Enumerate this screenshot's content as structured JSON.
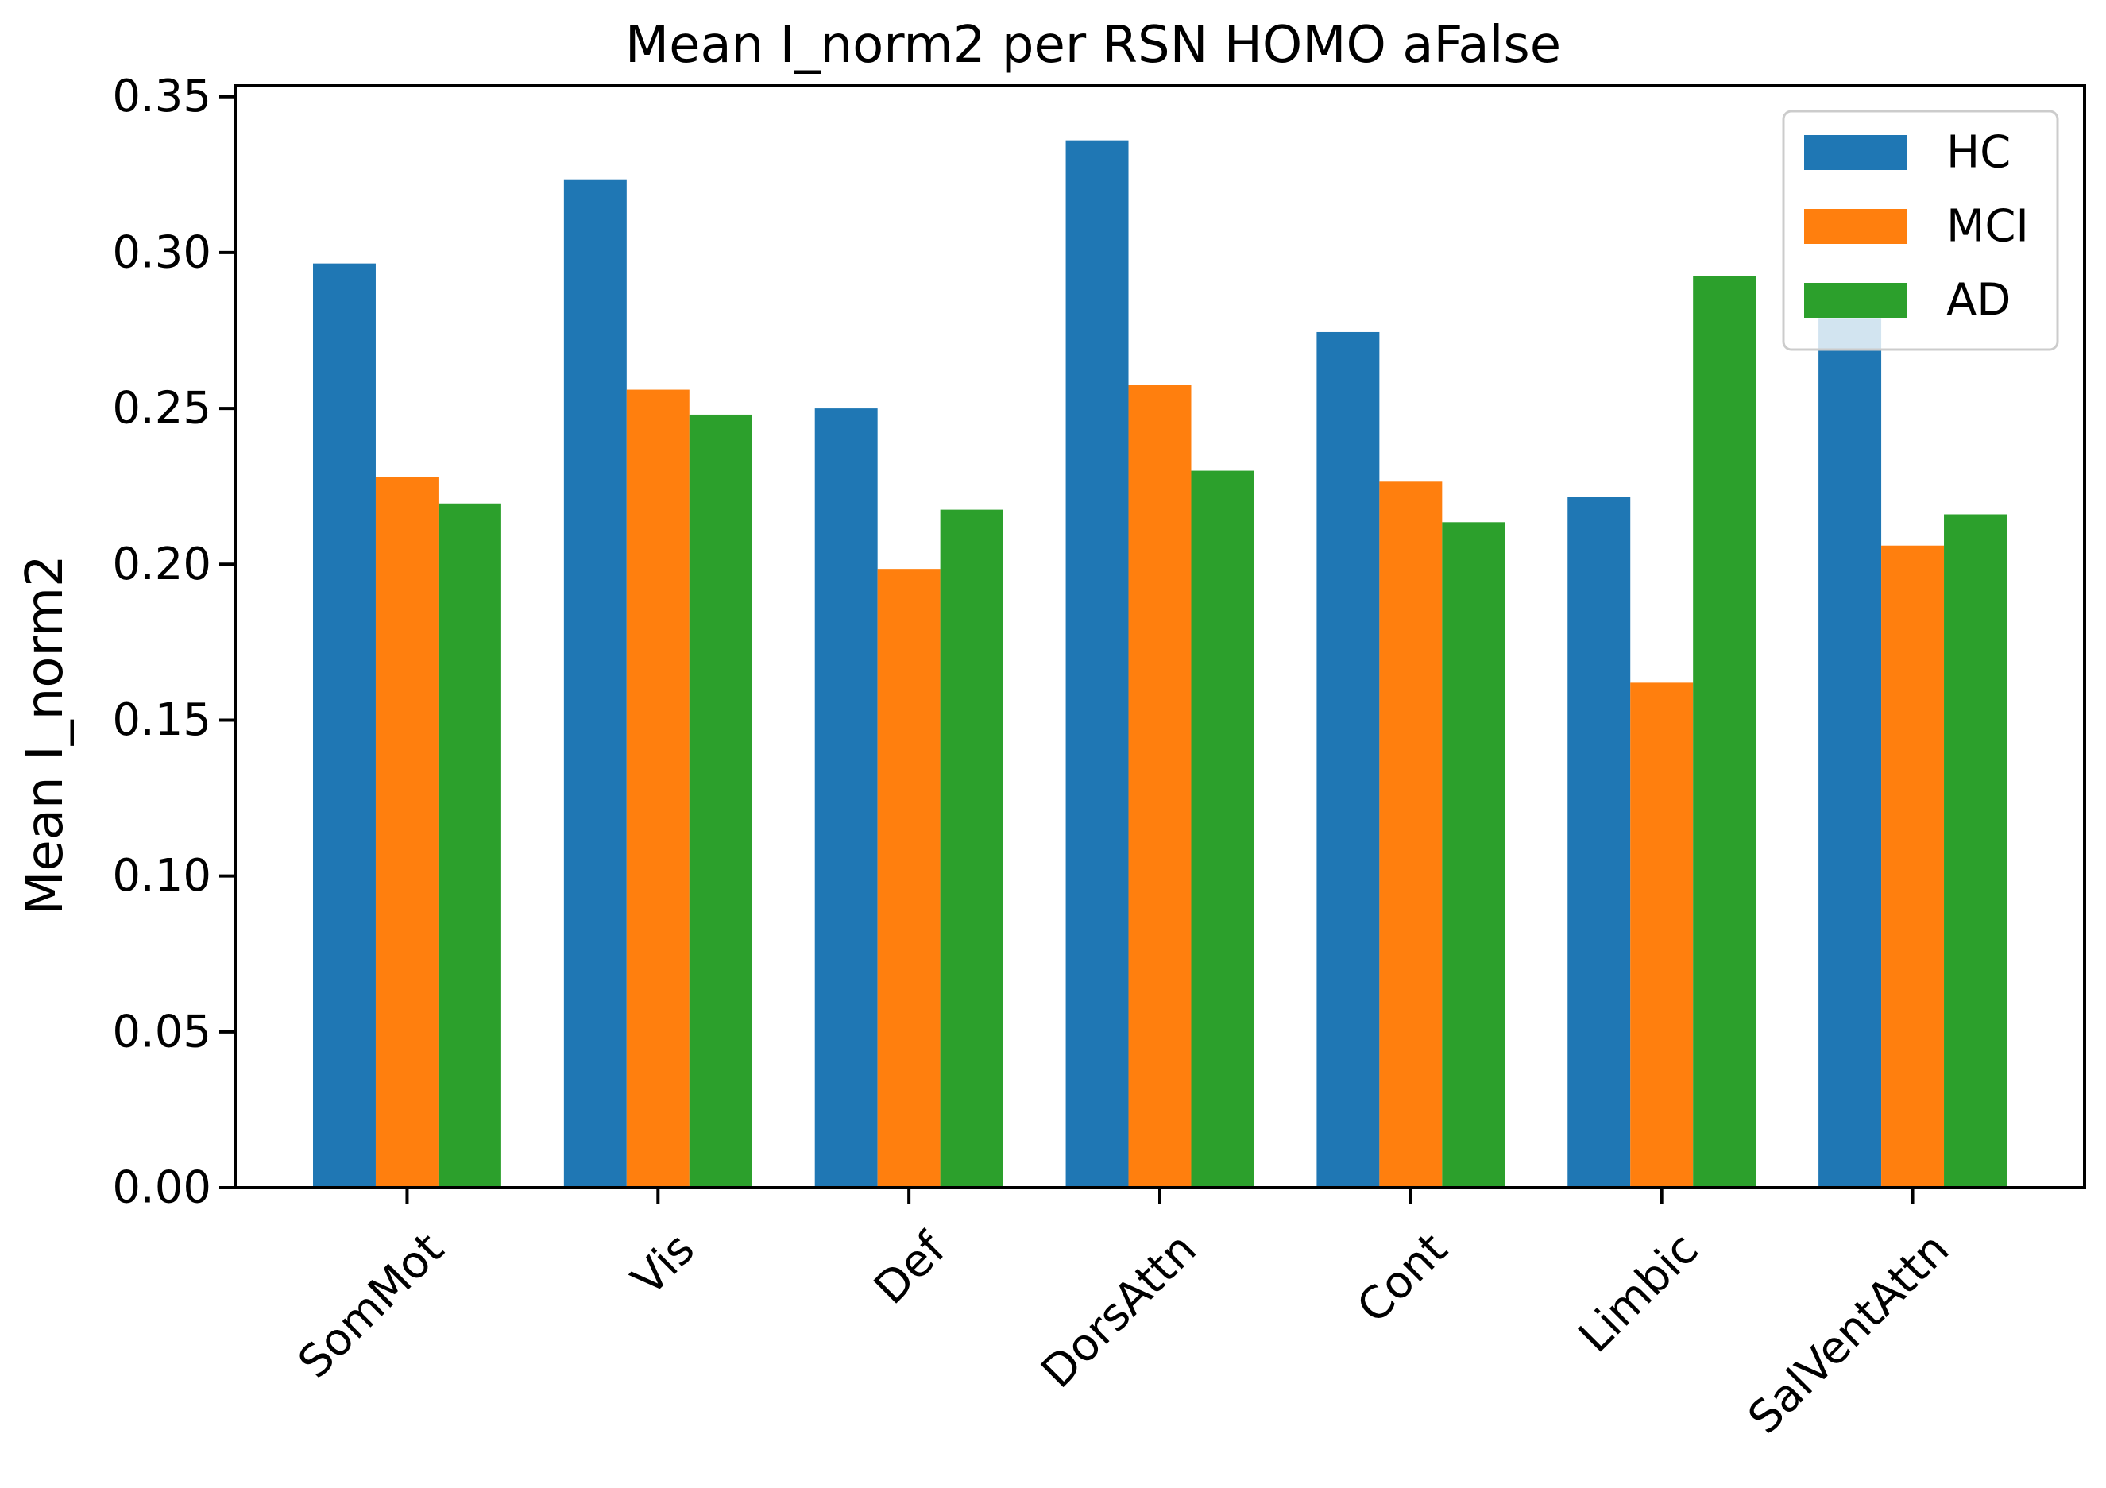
{
  "chart_data": {
    "type": "bar",
    "title": "Mean I_norm2 per RSN HOMO aFalse",
    "xlabel": "",
    "ylabel": "Mean I_norm2",
    "categories": [
      "SomMot",
      "Vis",
      "Def",
      "DorsAttn",
      "Cont",
      "Limbic",
      "SalVentAttn"
    ],
    "series": [
      {
        "name": "HC",
        "color": "#1f77b4",
        "values": [
          0.2965,
          0.3235,
          0.25,
          0.336,
          0.2745,
          0.2215,
          0.279
        ]
      },
      {
        "name": "MCI",
        "color": "#ff7f0e",
        "values": [
          0.228,
          0.256,
          0.1985,
          0.2575,
          0.2265,
          0.162,
          0.206
        ]
      },
      {
        "name": "AD",
        "color": "#2ca02c",
        "values": [
          0.2195,
          0.248,
          0.2175,
          0.23,
          0.2135,
          0.2925,
          0.216
        ]
      }
    ],
    "ylim": [
      0,
      0.3535
    ],
    "yticks": [
      "0.00",
      "0.05",
      "0.10",
      "0.15",
      "0.20",
      "0.25",
      "0.30",
      "0.35"
    ],
    "grid": false,
    "legend": "top-right"
  }
}
